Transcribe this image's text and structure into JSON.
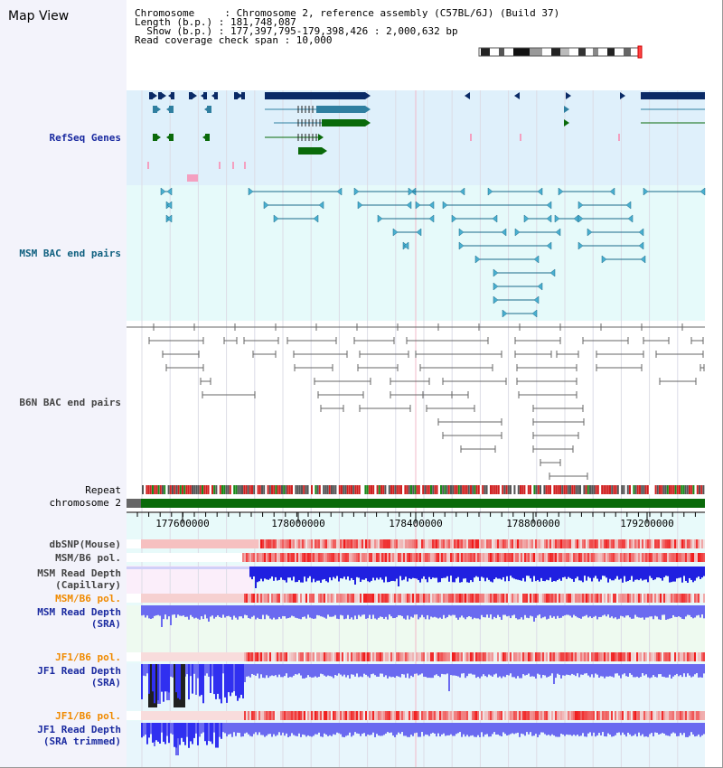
{
  "map_view": {
    "title": "Map View"
  },
  "info": {
    "line1": "Chromosome     : Chromosome 2, reference assembly (C57BL/6J) (Build 37)",
    "line2": "Length (b.p.) : 181,748,087",
    "line3": "  Show (b.p.) : 177,397,795-179,398,426 : 2,000,632 bp",
    "line4": "Read coverage check span : 10,000"
  },
  "tracks": {
    "refseq": "RefSeq Genes",
    "msm_bac": "MSM BAC end pairs",
    "b6n_bac": "B6N BAC end pairs",
    "repeat": "Repeat",
    "chromosome": "chromosome 2",
    "dbsnp": "dbSNP(Mouse)",
    "msm_b6_pol_1": "MSM/B6 pol.",
    "msm_depth_cap": "MSM Read Depth\n(Capillary)",
    "msm_b6_pol_2": "MSM/B6 pol.",
    "msm_depth_sra": "MSM Read Depth\n(SRA)",
    "jf1_b6_pol_1": "JF1/B6 pol.",
    "jf1_depth_sra": "JF1 Read Depth\n(SRA)",
    "jf1_b6_pol_2": "JF1/B6 pol.",
    "jf1_depth_trim": "JF1 Read Depth\n(SRA trimmed)"
  },
  "axis": {
    "ticks": [
      "177600000",
      "178000000",
      "178400000",
      "178800000",
      "179200000"
    ]
  },
  "colors": {
    "refseq_bg": "#dff0fb",
    "msm_bg": "#e6fafa",
    "navy": "#0a2a66",
    "teal": "#2f7fa0",
    "green": "#0a6a0a",
    "msm_line": "#1a6a8a",
    "b6n_line": "#666666",
    "label_blue": "#1a2aa0",
    "label_teal": "#106080",
    "label_gray": "#444444",
    "label_orange": "#f08a00",
    "depth_blue": "#2020e0",
    "depth_light": "#6a6af0",
    "pol_red": "#e02020"
  }
}
